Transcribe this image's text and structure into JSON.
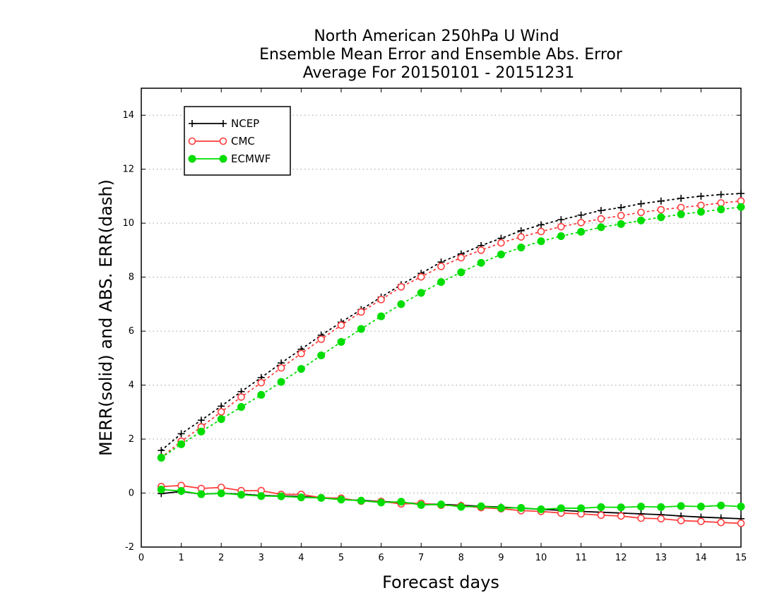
{
  "chart_data": {
    "type": "line",
    "title_lines": [
      "North American 250hPa U Wind",
      "Ensemble Mean Error and Ensemble Abs. Error",
      "Average For 20150101 - 20151231"
    ],
    "xlabel": "Forecast days",
    "ylabel": "MERR(solid) and ABS. ERR(dash)",
    "xlim": [
      0,
      15
    ],
    "ylim": [
      -2,
      15
    ],
    "x_ticks": [
      "0",
      "1",
      "2",
      "3",
      "4",
      "5",
      "6",
      "7",
      "8",
      "9",
      "10",
      "11",
      "12",
      "13",
      "14",
      "15"
    ],
    "y_ticks": [
      "-2",
      "0",
      "2",
      "4",
      "6",
      "8",
      "10",
      "12",
      "14"
    ],
    "grid": "horizontal dotted",
    "legend_position": "top-left",
    "x": [
      0.5,
      1,
      1.5,
      2,
      2.5,
      3,
      3.5,
      4,
      4.5,
      5,
      5.5,
      6,
      6.5,
      7,
      7.5,
      8,
      8.5,
      9,
      9.5,
      10,
      10.5,
      11,
      11.5,
      12,
      12.5,
      13,
      13.5,
      14,
      14.5,
      15
    ],
    "series": [
      {
        "name": "NCEP",
        "color": "#000000",
        "marker": "plus",
        "merr": [
          -0.02,
          0.06,
          -0.04,
          -0.01,
          -0.04,
          -0.09,
          -0.11,
          -0.13,
          -0.18,
          -0.24,
          -0.27,
          -0.31,
          -0.35,
          -0.4,
          -0.42,
          -0.45,
          -0.49,
          -0.52,
          -0.56,
          -0.6,
          -0.64,
          -0.68,
          -0.71,
          -0.74,
          -0.77,
          -0.8,
          -0.85,
          -0.89,
          -0.92,
          -0.95
        ],
        "abs_err": [
          1.58,
          2.2,
          2.7,
          3.22,
          3.76,
          4.28,
          4.82,
          5.33,
          5.85,
          6.33,
          6.8,
          7.26,
          7.72,
          8.14,
          8.56,
          8.86,
          9.17,
          9.44,
          9.72,
          9.94,
          10.13,
          10.3,
          10.47,
          10.58,
          10.72,
          10.82,
          10.92,
          11.0,
          11.06,
          11.1
        ]
      },
      {
        "name": "CMC",
        "color": "#ff3c3c",
        "marker": "open-circle",
        "merr": [
          0.24,
          0.28,
          0.17,
          0.21,
          0.09,
          0.09,
          -0.05,
          -0.05,
          -0.17,
          -0.19,
          -0.3,
          -0.31,
          -0.4,
          -0.38,
          -0.45,
          -0.47,
          -0.54,
          -0.58,
          -0.65,
          -0.68,
          -0.74,
          -0.77,
          -0.82,
          -0.85,
          -0.93,
          -0.95,
          -1.02,
          -1.05,
          -1.09,
          -1.12
        ],
        "abs_err": [
          1.32,
          1.92,
          2.45,
          3.01,
          3.56,
          4.09,
          4.64,
          5.17,
          5.7,
          6.22,
          6.71,
          7.17,
          7.64,
          8.01,
          8.4,
          8.72,
          9.0,
          9.27,
          9.49,
          9.69,
          9.87,
          10.02,
          10.16,
          10.28,
          10.4,
          10.5,
          10.58,
          10.66,
          10.75,
          10.82
        ]
      },
      {
        "name": "ECMWF",
        "color": "#00dd00",
        "marker": "filled-circle",
        "merr": [
          0.13,
          0.08,
          -0.04,
          -0.01,
          -0.06,
          -0.11,
          -0.12,
          -0.16,
          -0.18,
          -0.24,
          -0.28,
          -0.35,
          -0.32,
          -0.44,
          -0.42,
          -0.51,
          -0.49,
          -0.55,
          -0.55,
          -0.6,
          -0.56,
          -0.56,
          -0.52,
          -0.53,
          -0.5,
          -0.52,
          -0.48,
          -0.5,
          -0.46,
          -0.5
        ],
        "abs_err": [
          1.31,
          1.81,
          2.28,
          2.74,
          3.19,
          3.64,
          4.12,
          4.6,
          5.1,
          5.6,
          6.08,
          6.55,
          7.0,
          7.42,
          7.82,
          8.18,
          8.53,
          8.84,
          9.1,
          9.33,
          9.52,
          9.68,
          9.85,
          9.97,
          10.1,
          10.22,
          10.33,
          10.42,
          10.51,
          10.6
        ]
      }
    ]
  }
}
